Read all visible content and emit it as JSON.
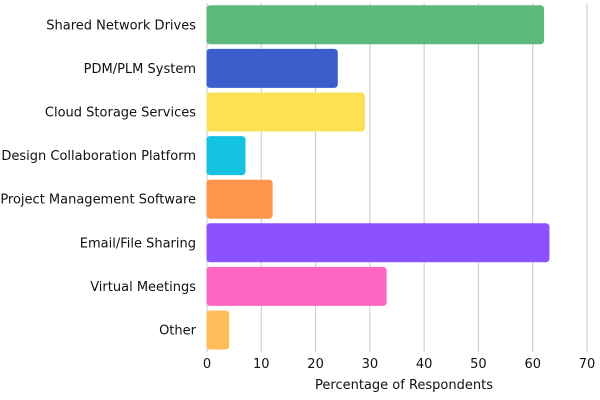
{
  "chart_data": {
    "type": "bar",
    "orientation": "horizontal",
    "categories": [
      "Shared Network Drives",
      "PDM/PLM System",
      "Cloud Storage Services",
      "Design Collaboration Platform",
      "Project Management Software",
      "Email/File Sharing",
      "Virtual Meetings",
      "Other"
    ],
    "values": [
      62,
      24,
      29,
      7,
      12,
      63,
      33,
      4
    ],
    "colors": [
      "#5cb97c",
      "#3a5fcd",
      "#ffe055",
      "#12c2e0",
      "#ff944c",
      "#8c52ff",
      "#ff66c4",
      "#ffbd59"
    ],
    "xlabel": "Percentage of Respondents",
    "ylabel": "",
    "xlim": [
      0,
      70
    ],
    "xticks": [
      0,
      10,
      20,
      30,
      40,
      50,
      60,
      70
    ],
    "grid": "vertical"
  }
}
